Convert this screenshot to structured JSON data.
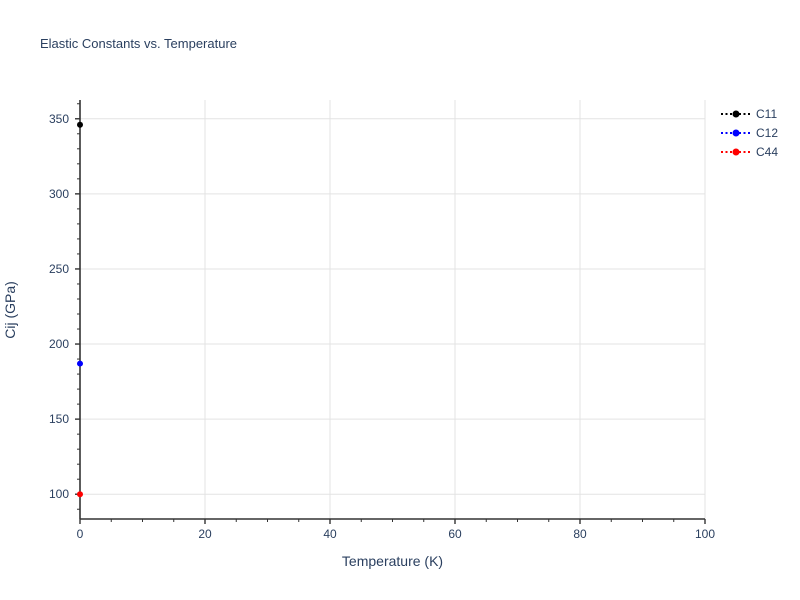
{
  "chart_data": {
    "type": "scatter",
    "title": "Elastic Constants vs. Temperature",
    "xlabel": "Temperature (K)",
    "ylabel": "Cij (GPa)",
    "x": [
      0
    ],
    "series": [
      {
        "name": "C11",
        "color": "#000000",
        "values": [
          346
        ]
      },
      {
        "name": "C12",
        "color": "#0000ff",
        "values": [
          187
        ]
      },
      {
        "name": "C44",
        "color": "#ff0000",
        "values": [
          100
        ]
      }
    ],
    "xlim": [
      0,
      100
    ],
    "ylim": [
      83.5,
      362.5
    ],
    "x_major_ticks": [
      0,
      20,
      40,
      60,
      80,
      100
    ],
    "x_minor_step": 5,
    "y_major_ticks": [
      100,
      150,
      200,
      250,
      300,
      350
    ],
    "y_minor_step": 10,
    "grid": true,
    "line_style": "dotted",
    "legend_position": "top-right-outside",
    "legend_entries": [
      "C11",
      "C12",
      "C44"
    ]
  },
  "colors": {
    "text": "#2a3f5f",
    "axis": "#333333",
    "grid": "#e3e3e3",
    "background": "#ffffff"
  }
}
